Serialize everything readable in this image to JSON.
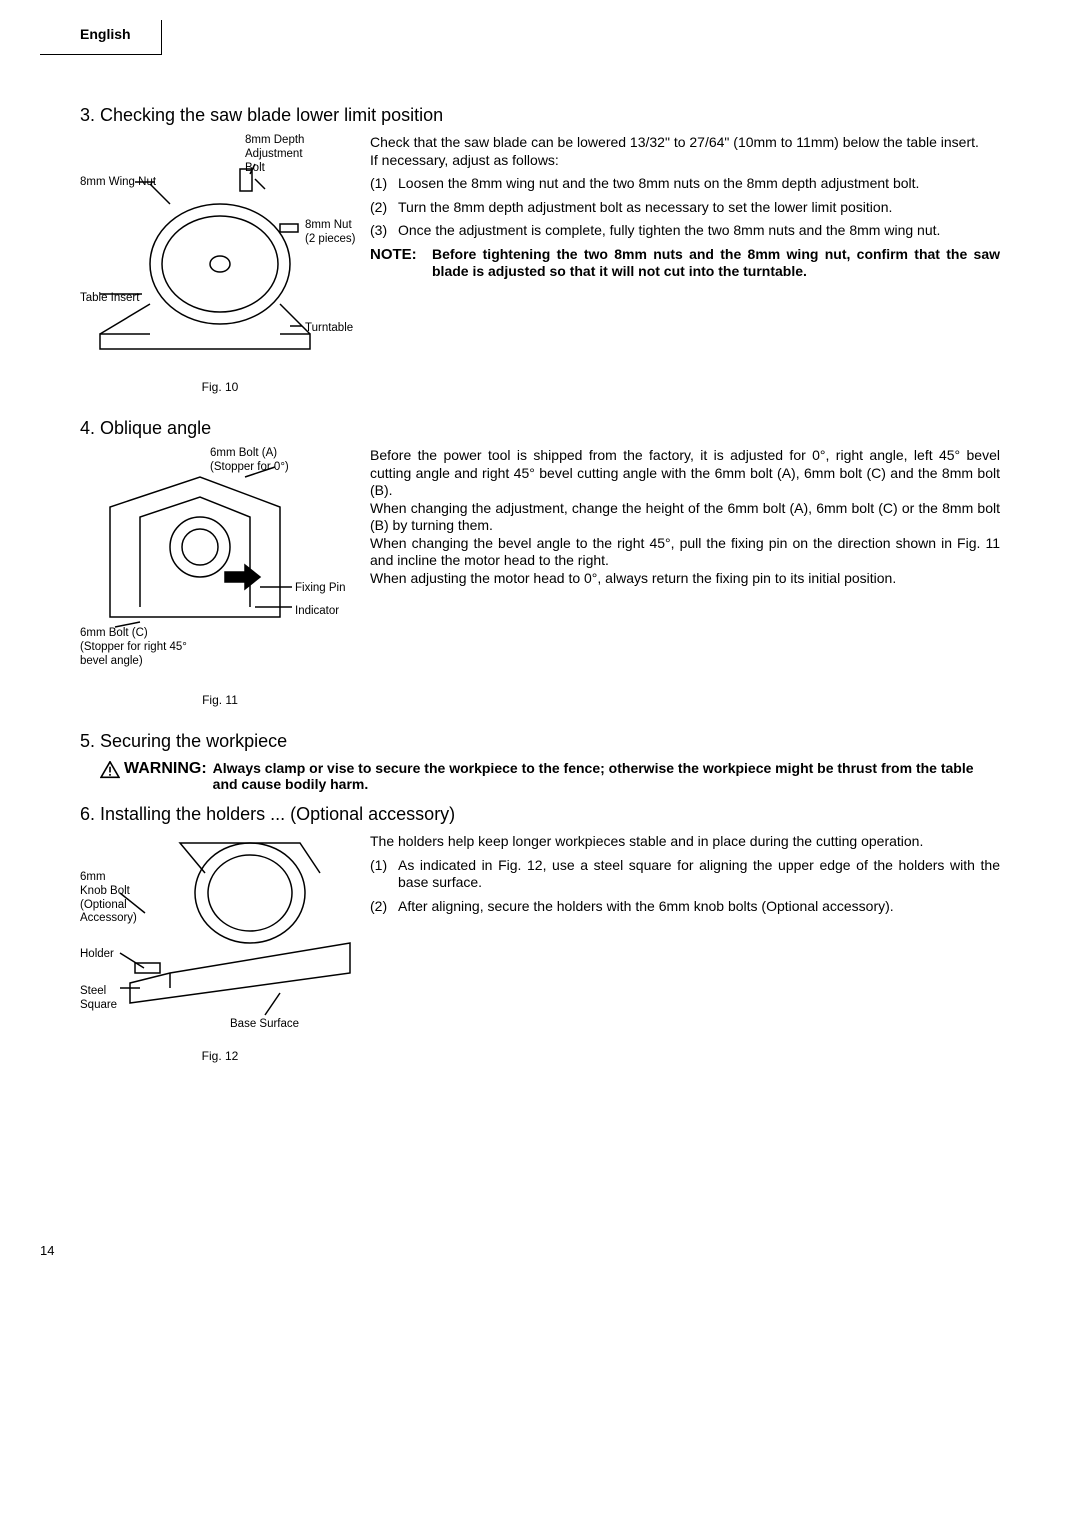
{
  "language": "English",
  "page_number": "14",
  "sections": {
    "s3": {
      "title": "3. Checking the saw blade lower limit position",
      "paras": [
        "Check that the saw blade can be lowered 13/32\" to 27/64\" (10mm to 11mm) below the table insert.",
        "If necessary, adjust as follows:"
      ],
      "steps": [
        {
          "n": "(1)",
          "t": "Loosen the 8mm wing nut and the two 8mm nuts on the 8mm depth adjustment bolt."
        },
        {
          "n": "(2)",
          "t": "Turn the 8mm depth adjustment bolt as necessary to set the lower limit position."
        },
        {
          "n": "(3)",
          "t": "Once the adjustment is complete, fully tighten the two 8mm nuts and the 8mm wing nut."
        }
      ],
      "note_label": "NOTE:",
      "note_text": "Before tightening the two 8mm nuts and the 8mm wing nut, confirm that the saw blade is adjusted so that it will not cut into the turntable.",
      "fig_caption": "Fig. 10",
      "callouts": {
        "c1": "8mm Depth\nAdjustment\nBolt",
        "c2": "8mm Wing Nut",
        "c3": "8mm Nut\n(2 pieces)",
        "c4": "Table Insert",
        "c5": "Turntable"
      }
    },
    "s4": {
      "title": "4. Oblique angle",
      "paras": [
        "Before the power tool is shipped from the factory, it is adjusted for 0°, right angle, left 45° bevel cutting angle and right 45° bevel cutting angle with the 6mm bolt (A), 6mm bolt (C) and the 8mm bolt (B).",
        "When changing the adjustment, change the height of the 6mm bolt (A), 6mm bolt (C) or the 8mm bolt (B) by turning them.",
        "When changing the bevel angle to the right 45°, pull the fixing pin on the direction shown in Fig. 11 and incline the motor head to the right.",
        "When adjusting the motor head to 0°, always return the fixing pin to its initial position."
      ],
      "fig_caption": "Fig. 11",
      "callouts": {
        "c1": "6mm Bolt (A)\n(Stopper for 0°)",
        "c2": "Fixing Pin",
        "c3": "Indicator",
        "c4": "6mm Bolt (C)\n(Stopper for right 45°\nbevel angle)"
      }
    },
    "s5": {
      "title": "5. Securing the workpiece",
      "warn_label": "WARNING:",
      "warn_text": "Always clamp or vise to secure the workpiece to the fence; otherwise the workpiece might be thrust from the table and cause bodily harm."
    },
    "s6": {
      "title": "6. Installing the holders ... (Optional accessory)",
      "paras": [
        "The holders help keep longer workpieces stable and in place during the cutting operation."
      ],
      "steps": [
        {
          "n": "(1)",
          "t": "As indicated in Fig. 12, use a steel square for aligning the upper edge of the holders with the base surface."
        },
        {
          "n": "(2)",
          "t": "After aligning, secure the holders with the 6mm knob bolts (Optional accessory)."
        }
      ],
      "fig_caption": "Fig. 12",
      "callouts": {
        "c1": "6mm\nKnob Bolt\n(Optional\nAccessory)",
        "c2": "Holder",
        "c3": "Steel\nSquare",
        "c4": "Base Surface"
      }
    }
  }
}
